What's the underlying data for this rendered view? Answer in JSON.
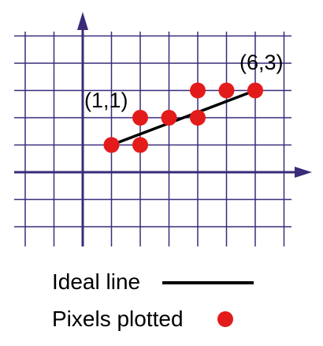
{
  "diagram": {
    "grid_x_range": [
      -2,
      7
    ],
    "grid_y_range": [
      -2,
      5
    ],
    "axis_color": "#3b2b7a",
    "grid_color": "#3b2b7a",
    "ideal_line": {
      "start": [
        1,
        1
      ],
      "end": [
        6,
        3
      ],
      "color": "#000000"
    },
    "pixels": [
      [
        1,
        1
      ],
      [
        2,
        1
      ],
      [
        2,
        2
      ],
      [
        3,
        2
      ],
      [
        4,
        2
      ],
      [
        4,
        3
      ],
      [
        5,
        3
      ],
      [
        6,
        3
      ]
    ],
    "pixel_color": "#e31b1b",
    "labels": {
      "start_point": "(1,1)",
      "end_point": "(6,3)"
    }
  },
  "legend": {
    "ideal_line_label": "Ideal line",
    "pixels_label": "Pixels plotted",
    "line_color": "#000000",
    "pixel_color": "#e31b1b"
  }
}
